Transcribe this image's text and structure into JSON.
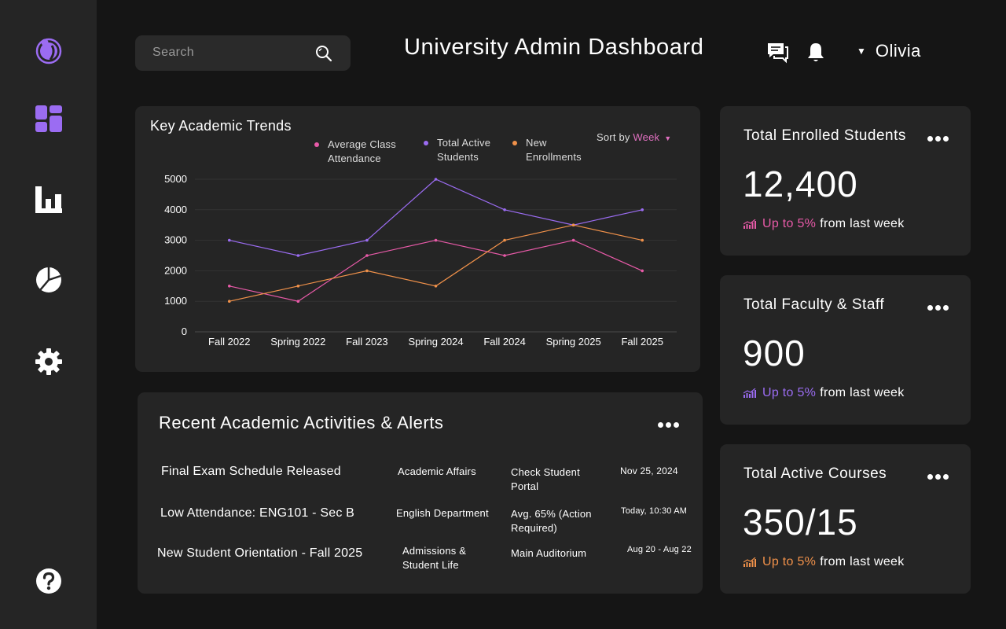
{
  "search": {
    "placeholder": "Search"
  },
  "header": {
    "title": "University Admin Dashboard",
    "user_name": "Olivia"
  },
  "colors": {
    "attendance": "#e85aa8",
    "active": "#9b6cf2",
    "enrollments": "#f0914a",
    "accent": "#9b6cf2"
  },
  "sidebar": {
    "items": [
      {
        "icon": "logo-icon"
      },
      {
        "icon": "dashboard-icon"
      },
      {
        "icon": "bar-chart-icon"
      },
      {
        "icon": "pie-chart-icon"
      },
      {
        "icon": "gear-icon"
      },
      {
        "icon": "help-icon"
      }
    ]
  },
  "chart": {
    "title": "Key Academic Trends",
    "legend": [
      {
        "line1": "Average Class",
        "line2": "Attendance"
      },
      {
        "line1": "Total Active",
        "line2": "Students"
      },
      {
        "line1": "New",
        "line2": "Enrollments"
      }
    ],
    "sort_label": "Sort by",
    "sort_value": "Week"
  },
  "chart_data": {
    "type": "line",
    "categories": [
      "Fall 2022",
      "Spring 2022",
      "Fall 2023",
      "Spring 2024",
      "Fall 2024",
      "Spring 2025",
      "Fall 2025"
    ],
    "ylim": [
      0,
      5000
    ],
    "yticks": [
      0,
      1000,
      2000,
      3000,
      4000,
      5000
    ],
    "grid": true,
    "legend_position": "top",
    "series": [
      {
        "name": "Average Class Attendance",
        "color": "#e85aa8",
        "values": [
          1500,
          1000,
          2500,
          3000,
          2500,
          3000,
          2000
        ]
      },
      {
        "name": "Total Active Students",
        "color": "#9b6cf2",
        "values": [
          3000,
          2500,
          3000,
          5000,
          4000,
          3500,
          4000
        ]
      },
      {
        "name": "New Enrollments",
        "color": "#f0914a",
        "values": [
          1000,
          1500,
          2000,
          1500,
          3000,
          3500,
          3000
        ]
      }
    ]
  },
  "activities": {
    "title": "Recent Academic Activities & Alerts",
    "rows": [
      {
        "title": "Final Exam Schedule Released",
        "department": "Academic Affairs",
        "detail": "Check Student Portal",
        "date": "Nov 25, 2024"
      },
      {
        "title": "Low Attendance: ENG101 - Sec B",
        "department": "English Department",
        "detail": "Avg. 65% (Action Required)",
        "date": "Today, 10:30 AM"
      },
      {
        "title": "New Student Orientation - Fall 2025",
        "department": "Admissions & Student Life",
        "detail": "Main Auditorium",
        "date": "Aug 20 - Aug 22"
      }
    ]
  },
  "stats": [
    {
      "title": "Total Enrolled Students",
      "value": "12,400",
      "trend": "Up to 5%",
      "trend_suffix": "from last week",
      "color": "#e85aa8"
    },
    {
      "title": "Total Faculty & Staff",
      "value": "900",
      "trend": "Up to 5%",
      "trend_suffix": "from last week",
      "color": "#9b6cf2"
    },
    {
      "title": "Total Active Courses",
      "value": "350/15",
      "trend": "Up to 5%",
      "trend_suffix": "from last week",
      "color": "#f0914a"
    }
  ]
}
